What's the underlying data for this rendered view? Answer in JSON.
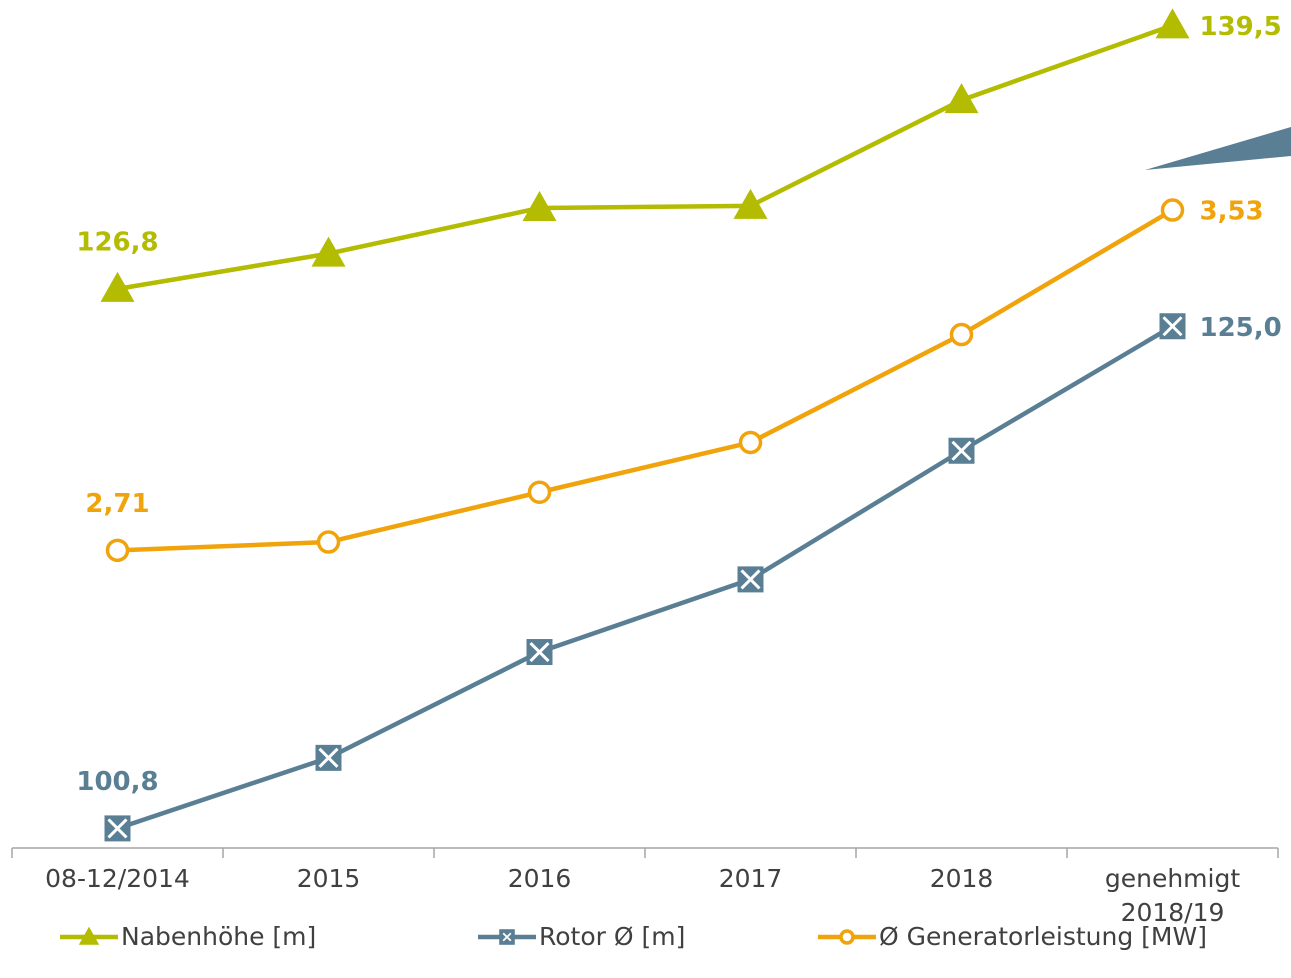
{
  "chart_data": {
    "type": "line",
    "categories": [
      "08-12/2014",
      "2015",
      "2016",
      "2017",
      "2018",
      "genehmigt 2018/19"
    ],
    "ylim": [
      100,
      140
    ],
    "y2lim": [
      2.0,
      4.0
    ],
    "series": [
      {
        "name": "Nabenhöhe [m]",
        "color": "#b3bc00",
        "marker": "triangle",
        "values": [
          126.8,
          128.5,
          130.7,
          130.8,
          135.9,
          139.5
        ],
        "value_labels": [
          "126,8",
          null,
          null,
          null,
          null,
          "139,5"
        ]
      },
      {
        "name": "Rotor Ø [m]",
        "color": "#5a7f95",
        "marker": "xbox",
        "values": [
          100.8,
          104.2,
          109.3,
          112.8,
          119.0,
          125.0
        ],
        "value_labels": [
          "100,8",
          null,
          null,
          null,
          null,
          "125,0"
        ]
      },
      {
        "name": "Ø Generatorleistung [MW]",
        "color": "#f0a30a",
        "marker": "circle",
        "axis": "y2",
        "values": [
          2.71,
          2.73,
          2.85,
          2.97,
          3.23,
          3.53
        ],
        "value_labels": [
          "2,71",
          null,
          null,
          null,
          null,
          "3,53"
        ]
      }
    ]
  }
}
